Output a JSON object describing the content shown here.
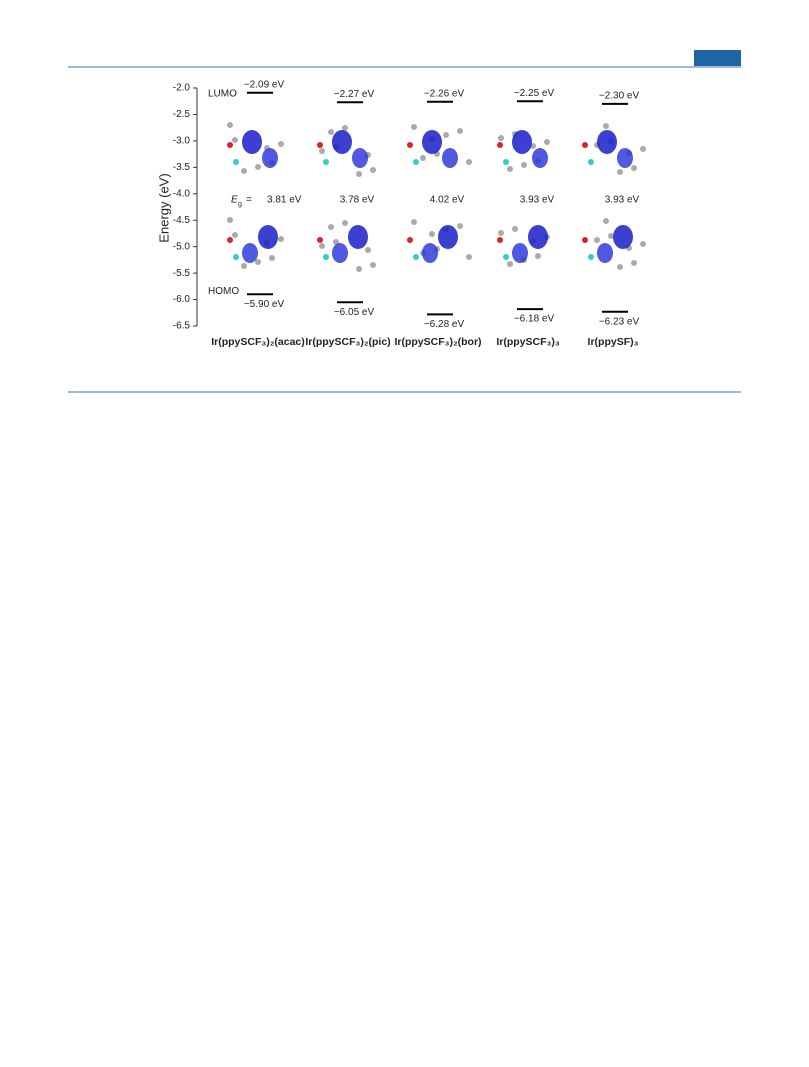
{
  "chart_data": {
    "type": "energy_level",
    "y_label": "Energy (eV)",
    "ylim": [
      -6.5,
      -2.0
    ],
    "yticks": [
      {
        "value": -2.0,
        "label": "-2.0"
      },
      {
        "value": -2.5,
        "label": "-2.5"
      },
      {
        "value": -3.0,
        "label": "-3.0"
      },
      {
        "value": -3.5,
        "label": "-3.5"
      },
      {
        "value": -4.0,
        "label": "-4.0"
      },
      {
        "value": -4.5,
        "label": "-4.5"
      },
      {
        "value": -5.0,
        "label": "-5.0"
      },
      {
        "value": -5.5,
        "label": "-5.5"
      },
      {
        "value": -6.0,
        "label": "-6.0"
      },
      {
        "value": -6.5,
        "label": "-6.5"
      }
    ],
    "categories": [
      "Ir(ppySCF₃)₂(acac)",
      "Ir(ppySCF₃)₂(pic)",
      "Ir(ppySCF₃)₂(bor)",
      "Ir(ppySCF₃)₃",
      "Ir(ppySF)₃"
    ],
    "series": [
      {
        "name": "LUMO",
        "color": "#000000",
        "values": [
          -2.09,
          -2.27,
          -2.26,
          -2.25,
          -2.3
        ],
        "value_labels": [
          "−2.09 eV",
          "−2.27 eV",
          "−2.26 eV",
          "−2.25 eV",
          "−2.30 eV"
        ]
      },
      {
        "name": "HOMO",
        "color": "#000000",
        "values": [
          -5.9,
          -6.05,
          -6.28,
          -6.18,
          -6.23
        ],
        "value_labels": [
          "−5.90 eV",
          "−6.05 eV",
          "−6.28 eV",
          "−6.18 eV",
          "−6.23 eV"
        ]
      }
    ],
    "gap": {
      "symbol": "E",
      "subscript": "g",
      "relation": "=",
      "values": [
        3.81,
        3.78,
        4.02,
        3.93,
        3.93
      ],
      "value_labels": [
        "3.81 eV",
        "3.78 eV",
        "4.02 eV",
        "3.93 eV",
        "3.93 eV"
      ]
    }
  }
}
